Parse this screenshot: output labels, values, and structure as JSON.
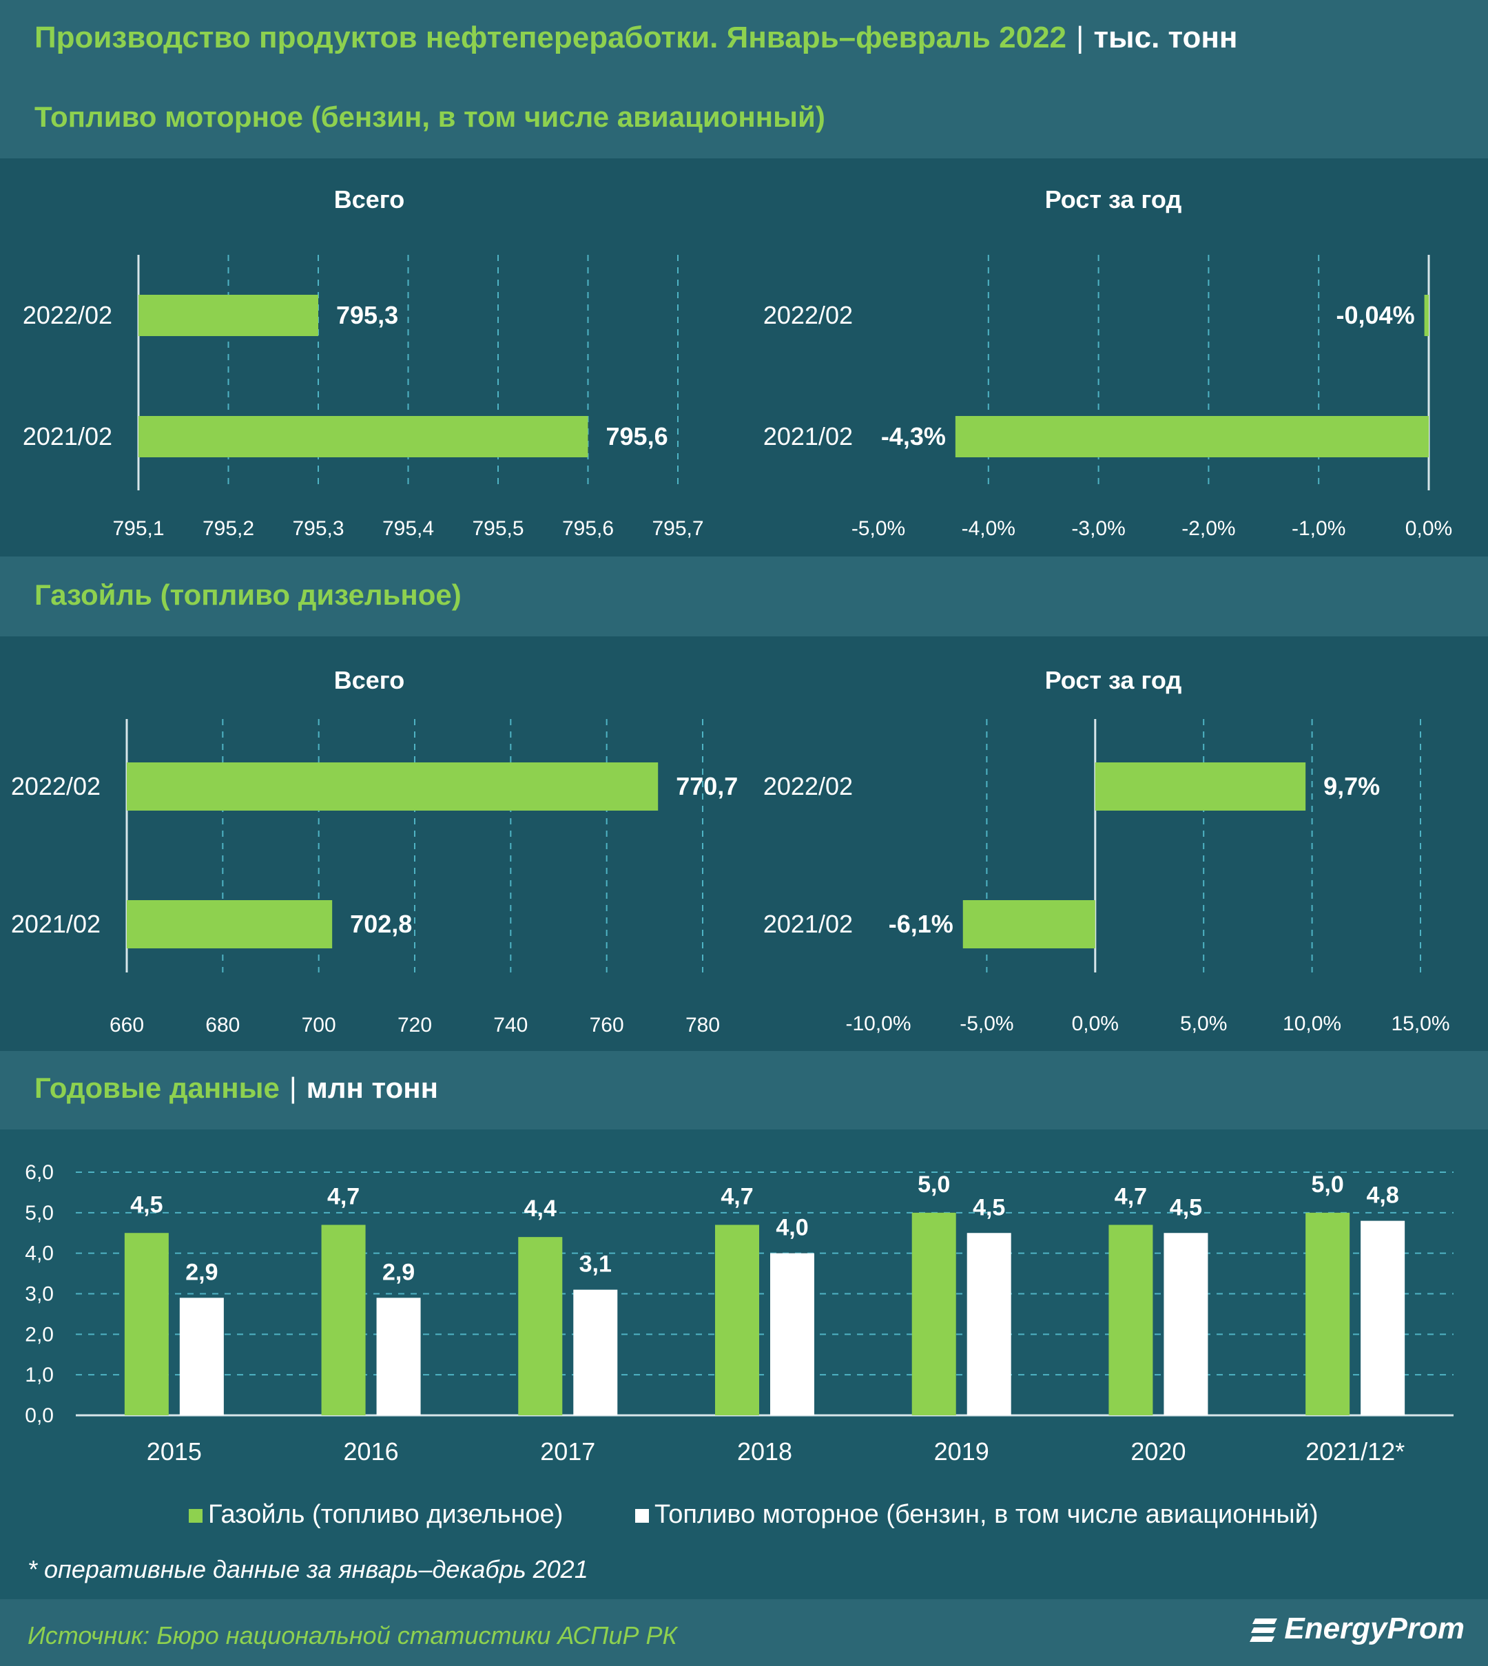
{
  "header": {
    "title": "Производство продуктов нефтепереработки. Январь–февраль 2022",
    "separator": "|",
    "unit": "тыс. тонн"
  },
  "sections": {
    "motor_title": "Топливо моторное (бензин, в том числе авиационный)",
    "gasoil_title": "Газойль (топливо дизельное)",
    "annual_title": "Годовые данные",
    "annual_separator": "|",
    "annual_unit": "млн тонн"
  },
  "colors": {
    "green": "#8ed14f",
    "white": "#ffffff",
    "background": "#1d5a68",
    "band": "#2c6775"
  },
  "chart_data": [
    {
      "id": "motor_total",
      "type": "bar",
      "orientation": "horizontal",
      "title": "Всего",
      "categories": [
        "2022/02",
        "2021/02"
      ],
      "values": [
        795.3,
        795.6
      ],
      "value_labels": [
        "795,3",
        "795,6"
      ],
      "xlim": [
        795.1,
        795.7
      ],
      "x_ticks": [
        "795,1",
        "795,2",
        "795,3",
        "795,4",
        "795,5",
        "795,6",
        "795,7"
      ],
      "grid": true
    },
    {
      "id": "motor_growth",
      "type": "bar",
      "orientation": "horizontal",
      "title": "Рост за год",
      "categories": [
        "2022/02",
        "2021/02"
      ],
      "values": [
        -0.04,
        -4.3
      ],
      "value_labels": [
        "-0,04%",
        "-4,3%"
      ],
      "xlim": [
        -5,
        0
      ],
      "x_ticks": [
        "-5,0%",
        "-4,0%",
        "-3,0%",
        "-2,0%",
        "-1,0%",
        "0,0%"
      ],
      "grid": true
    },
    {
      "id": "gasoil_total",
      "type": "bar",
      "orientation": "horizontal",
      "title": "Всего",
      "categories": [
        "2022/02",
        "2021/02"
      ],
      "values": [
        770.7,
        702.8
      ],
      "value_labels": [
        "770,7",
        "702,8"
      ],
      "xlim": [
        660,
        780
      ],
      "x_ticks": [
        "660",
        "680",
        "700",
        "720",
        "740",
        "760",
        "780"
      ],
      "grid": true
    },
    {
      "id": "gasoil_growth",
      "type": "bar",
      "orientation": "horizontal",
      "title": "Рост за год",
      "categories": [
        "2022/02",
        "2021/02"
      ],
      "values": [
        9.7,
        -6.1
      ],
      "value_labels": [
        "9,7%",
        "-6,1%"
      ],
      "xlim": [
        -10,
        15
      ],
      "x_ticks": [
        "-10,0%",
        "-5,0%",
        "0,0%",
        "5,0%",
        "10,0%",
        "15,0%"
      ],
      "grid": true
    },
    {
      "id": "annual",
      "type": "bar",
      "orientation": "vertical",
      "categories": [
        "2015",
        "2016",
        "2017",
        "2018",
        "2019",
        "2020",
        "2021/12*"
      ],
      "series": [
        {
          "name": "Газойль (топливо дизельное)",
          "color": "#8ed14f",
          "values": [
            4.5,
            4.7,
            4.4,
            4.7,
            5.0,
            4.7,
            5.0
          ],
          "value_labels": [
            "4,5",
            "4,7",
            "4,4",
            "4,7",
            "5,0",
            "4,7",
            "5,0"
          ]
        },
        {
          "name": "Топливо моторное (бензин, в том числе авиационный)",
          "color": "#ffffff",
          "values": [
            2.9,
            2.9,
            3.1,
            4.0,
            4.5,
            4.5,
            4.8
          ],
          "value_labels": [
            "2,9",
            "2,9",
            "3,1",
            "4,0",
            "4,5",
            "4,5",
            "4,8"
          ]
        }
      ],
      "ylim": [
        0,
        6
      ],
      "y_ticks": [
        "0,0",
        "1,0",
        "2,0",
        "3,0",
        "4,0",
        "5,0",
        "6,0"
      ],
      "grid": true,
      "legend": "bottom"
    }
  ],
  "footnote": "* оперативные данные за январь–декабрь 2021",
  "source": "Источник: Бюро национальной статистики АСПиР РК",
  "logo": "EnergyProm"
}
